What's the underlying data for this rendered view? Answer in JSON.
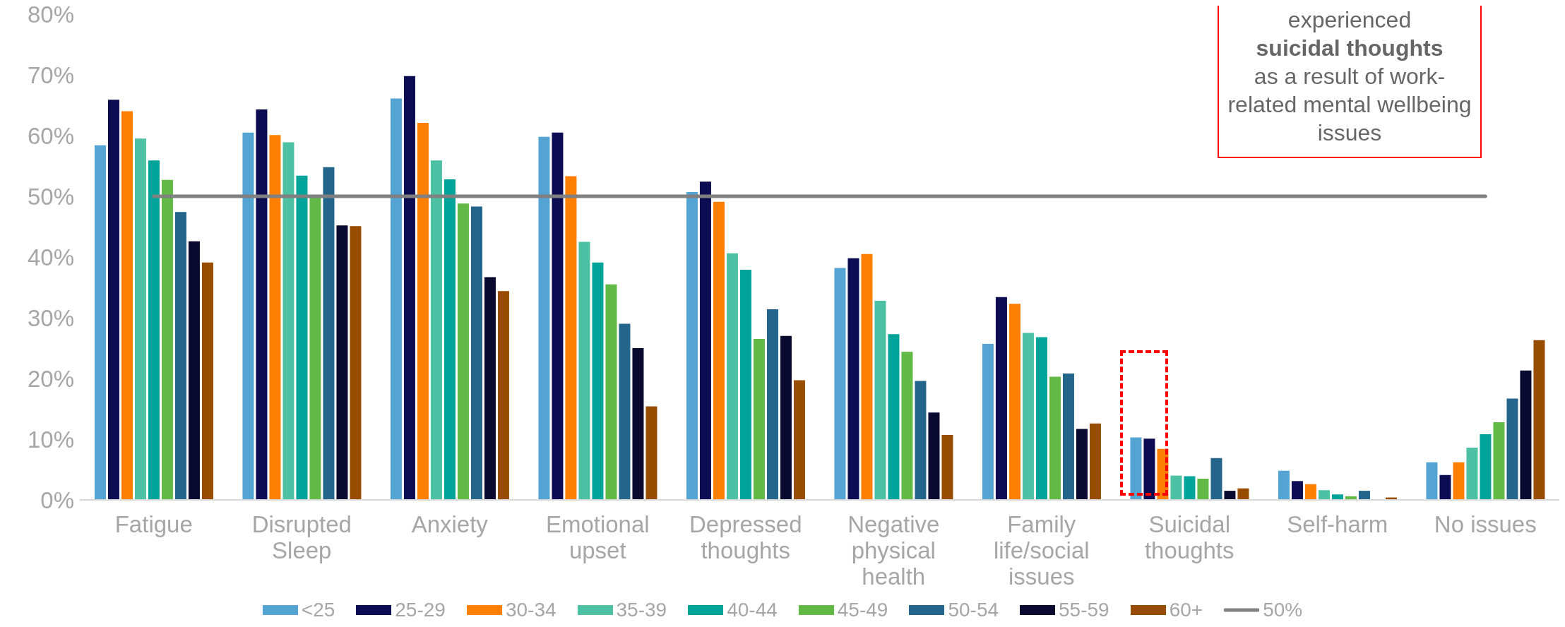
{
  "chart_data": {
    "type": "bar",
    "categories": [
      "Fatigue",
      "Disrupted Sleep",
      "Anxiety",
      "Emotional upset",
      "Depressed thoughts",
      "Negative physical health",
      "Family life/social issues",
      "Suicidal thoughts",
      "Self-harm",
      "No issues"
    ],
    "series": [
      {
        "name": "<25",
        "color": "#53a3d3",
        "values": [
          58.4,
          60.5,
          66.1,
          59.8,
          50.7,
          38.2,
          25.7,
          10.3,
          4.8,
          6.2
        ]
      },
      {
        "name": "25-29",
        "color": "#0c0c52",
        "values": [
          65.9,
          64.3,
          69.8,
          60.5,
          52.4,
          39.8,
          33.4,
          10.1,
          3.1,
          4.1
        ]
      },
      {
        "name": "30-34",
        "color": "#ff7f00",
        "values": [
          64.0,
          60.1,
          62.1,
          53.3,
          49.1,
          40.5,
          32.3,
          8.4,
          2.6,
          6.2
        ]
      },
      {
        "name": "35-39",
        "color": "#4cc1a3",
        "values": [
          59.5,
          58.9,
          55.9,
          42.5,
          40.6,
          32.8,
          27.5,
          4.0,
          1.6,
          8.6
        ]
      },
      {
        "name": "40-44",
        "color": "#02a399",
        "values": [
          55.9,
          53.4,
          52.8,
          39.1,
          37.9,
          27.3,
          26.8,
          3.9,
          0.9,
          10.8
        ]
      },
      {
        "name": "45-49",
        "color": "#62b946",
        "values": [
          52.7,
          50.0,
          48.8,
          35.5,
          26.5,
          24.4,
          20.3,
          3.5,
          0.6,
          12.8
        ]
      },
      {
        "name": "50-54",
        "color": "#23658b",
        "values": [
          47.4,
          54.8,
          48.3,
          29.0,
          31.4,
          19.6,
          20.8,
          6.9,
          1.5,
          16.7
        ]
      },
      {
        "name": "55-59",
        "color": "#0a0a30",
        "values": [
          42.6,
          45.2,
          36.7,
          25.0,
          27.0,
          14.4,
          11.7,
          1.5,
          0,
          21.3
        ]
      },
      {
        "name": "60+",
        "color": "#974c00",
        "values": [
          39.1,
          45.1,
          34.4,
          15.4,
          19.7,
          10.7,
          12.6,
          1.9,
          0.4,
          26.3
        ]
      },
      {
        "name": "50%",
        "type": "line",
        "color": "#808080",
        "values": [
          50,
          50,
          50,
          50,
          50,
          50,
          50,
          50,
          50,
          50
        ]
      }
    ],
    "ylim": [
      0,
      80
    ],
    "yticks": [
      {
        "value": 0,
        "label": "0%"
      },
      {
        "value": 10,
        "label": "10%"
      },
      {
        "value": 20,
        "label": "20%"
      },
      {
        "value": 30,
        "label": "30%"
      },
      {
        "value": 40,
        "label": "40%"
      },
      {
        "value": 50,
        "label": "50%"
      },
      {
        "value": 60,
        "label": "60%"
      },
      {
        "value": 70,
        "label": "70%"
      },
      {
        "value": 80,
        "label": "80%"
      }
    ],
    "grid": false,
    "legend": "bottom",
    "annotations": [
      "experienced",
      "suicidal thoughts",
      "as a result of work-related mental wellbeing issues"
    ]
  }
}
